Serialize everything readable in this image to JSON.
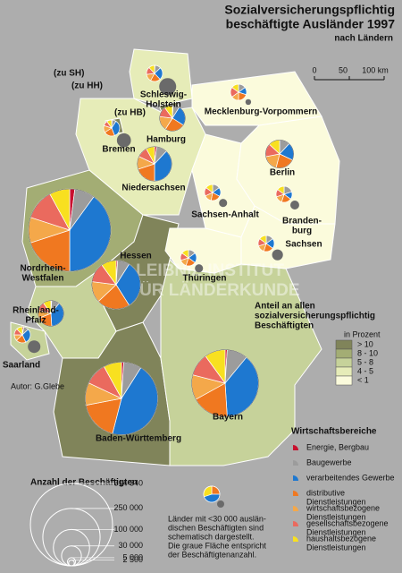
{
  "title": [
    "Sozialversicherungspflichtig",
    "beschäftigte Ausländer 1997"
  ],
  "subtitle": "nach Ländern",
  "scale": [
    "0",
    "50",
    "100 km"
  ],
  "notes_zu": [
    "(zu SH)",
    "(zu HH)",
    "(zu HB)"
  ],
  "watermark": [
    "LEIBNIZ-INSTITUT",
    "FÜR LÄNDERKUNDE"
  ],
  "author": "Autor:  G.Glebe",
  "share_legend": {
    "title": [
      "Anteil an allen",
      "sozialversicherungspflichtig",
      "Beschäftigten"
    ],
    "unit": "in Prozent",
    "classes": [
      {
        "label": "> 10",
        "color": "#80845a"
      },
      {
        "label": "8 - 10",
        "color": "#a3ad74"
      },
      {
        "label": "5 - 8",
        "color": "#c6d29a"
      },
      {
        "label": "4 - 5",
        "color": "#e6ecb8"
      },
      {
        "label": "< 1",
        "color": "#fbfbdc"
      }
    ]
  },
  "sector_legend": {
    "title": "Wirtschaftsbereiche",
    "sectors": [
      {
        "label": [
          "Energie, Bergbau"
        ],
        "color": "#c8102e"
      },
      {
        "label": [
          "Baugewerbe"
        ],
        "color": "#9c9c9c"
      },
      {
        "label": [
          "verarbeitendes Gewerbe"
        ],
        "color": "#1e78d0"
      },
      {
        "label": [
          "distributive",
          "Dienstleistungen"
        ],
        "color": "#f07820"
      },
      {
        "label": [
          "wirtschaftsbezogene",
          "Dienstleistungen"
        ],
        "color": "#f4a84a"
      },
      {
        "label": [
          "gesellschaftsbezogene",
          "Dienstleistungen"
        ],
        "color": "#ea6a5e"
      },
      {
        "label": [
          "haushaltsbezogene",
          "Dienstleistungen"
        ],
        "color": "#f8e020"
      }
    ]
  },
  "size_legend": {
    "title": "Anzahl der Beschäftigten",
    "ticks": [
      {
        "value": 514340,
        "label": "514 340"
      },
      {
        "value": 250000,
        "label": "250 000"
      },
      {
        "value": 100000,
        "label": "100 000"
      },
      {
        "value": 30000,
        "label": "30 000"
      },
      {
        "value": 5000,
        "label": "5 000"
      },
      {
        "value": 2500,
        "label": "2 500"
      }
    ],
    "threshold": 30000,
    "note": [
      "Länder mit <30 000 auslän-",
      "dischen Beschäftigten sind",
      "schematisch dargestellt.",
      "Die graue Fläche entspricht",
      "der Beschäftigtenanzahl."
    ]
  },
  "states": [
    {
      "label": [
        "Nordrhein-",
        "Westfalen"
      ],
      "share_class": 1,
      "employees": 514340,
      "sectors": [
        2,
        8,
        40,
        20,
        10,
        12,
        8
      ]
    },
    {
      "label": [
        "Baden-Württemberg"
      ],
      "share_class": 0,
      "employees": 400000,
      "sectors": [
        1,
        8,
        45,
        18,
        10,
        10,
        8
      ]
    },
    {
      "label": [
        "Bayern"
      ],
      "share_class": 2,
      "employees": 340000,
      "sectors": [
        1,
        10,
        38,
        18,
        12,
        11,
        10
      ]
    },
    {
      "label": [
        "Hessen"
      ],
      "share_class": 0,
      "employees": 180000,
      "sectors": [
        1,
        8,
        32,
        22,
        14,
        13,
        10
      ]
    },
    {
      "label": [
        "Niedersachsen"
      ],
      "share_class": 3,
      "employees": 90000,
      "sectors": [
        2,
        10,
        38,
        20,
        12,
        10,
        8
      ]
    },
    {
      "label": [
        "Hamburg"
      ],
      "share_class": 0,
      "employees": 50000,
      "sectors": [
        1,
        8,
        25,
        25,
        18,
        13,
        10
      ]
    },
    {
      "label": [
        "Berlin"
      ],
      "share_class": 1,
      "employees": 60000,
      "sectors": [
        0,
        12,
        20,
        22,
        18,
        15,
        13
      ]
    },
    {
      "label": [
        "Rheinland-",
        "Pfalz"
      ],
      "share_class": 2,
      "employees": 50000,
      "sectors": [
        1,
        10,
        38,
        20,
        10,
        11,
        10
      ]
    },
    {
      "label": [
        "Schleswig-",
        "Holstein"
      ],
      "share_class": 3,
      "employees": 22000,
      "sectors": [
        1,
        12,
        25,
        20,
        15,
        15,
        12
      ]
    },
    {
      "label": [
        "Bremen"
      ],
      "share_class": 0,
      "employees": 15000,
      "sectors": [
        1,
        8,
        35,
        22,
        14,
        10,
        10
      ]
    },
    {
      "label": [
        "Mecklenburg-Vorpommern"
      ],
      "share_class": 4,
      "employees": 2500,
      "sectors": [
        0,
        15,
        15,
        20,
        15,
        20,
        15
      ]
    },
    {
      "label": [
        "Sachsen-Anhalt"
      ],
      "share_class": 4,
      "employees": 5000,
      "sectors": [
        0,
        15,
        18,
        20,
        15,
        17,
        15
      ]
    },
    {
      "label": [
        "Branden-",
        "burg"
      ],
      "share_class": 4,
      "employees": 6000,
      "sectors": [
        0,
        20,
        15,
        20,
        15,
        15,
        15
      ]
    },
    {
      "label": [
        "Thüringen"
      ],
      "share_class": 4,
      "employees": 5000,
      "sectors": [
        0,
        15,
        20,
        20,
        15,
        15,
        15
      ]
    },
    {
      "label": [
        "Sachsen"
      ],
      "share_class": 4,
      "employees": 9000,
      "sectors": [
        0,
        15,
        20,
        20,
        15,
        15,
        15
      ]
    },
    {
      "label": [
        "Saarland"
      ],
      "share_class": 2,
      "employees": 12000,
      "sectors": [
        3,
        10,
        30,
        20,
        12,
        13,
        12
      ]
    }
  ]
}
